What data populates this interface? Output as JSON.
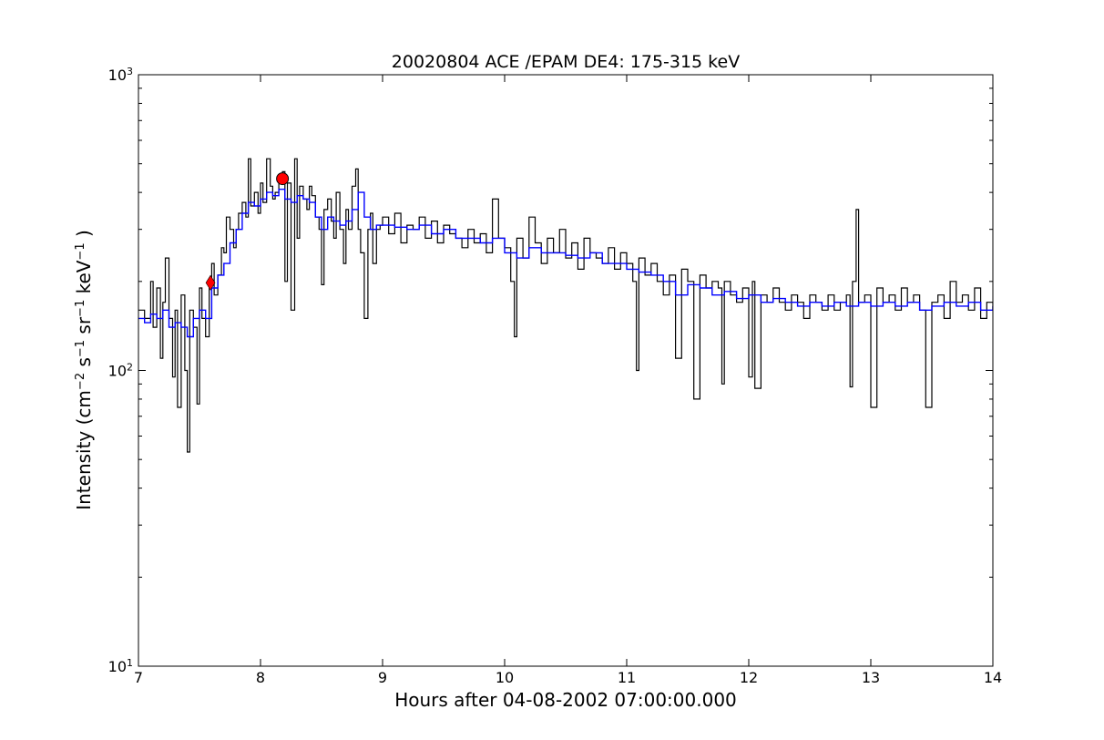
{
  "chart_data": {
    "type": "line",
    "title": "20020804 ACE /EPAM DE4: 175-315 keV",
    "xlabel": "Hours after 04-08-2002 07:00:00.000",
    "ylabel": {
      "prefix": "Intensity (cm",
      "exp1": "−2",
      "s": " s",
      "exp2": "−1",
      "sr": " sr",
      "exp3": "−1",
      "kev": " keV",
      "exp4": "−1",
      "suffix": " )"
    },
    "xlim": [
      7,
      14
    ],
    "ylim": [
      10,
      1000
    ],
    "yscale": "log",
    "grid": false,
    "x_ticks": [
      "7",
      "8",
      "9",
      "10",
      "11",
      "12",
      "13",
      "14"
    ],
    "y_ticks": [
      {
        "base": "10",
        "exp": "1"
      },
      {
        "base": "10",
        "exp": "2"
      },
      {
        "base": "10",
        "exp": "3"
      }
    ],
    "series": [
      {
        "color": "#000000",
        "style": "steps-raw",
        "points": [
          [
            7.0,
            160
          ],
          [
            7.05,
            150
          ],
          [
            7.1,
            200
          ],
          [
            7.12,
            140
          ],
          [
            7.15,
            190
          ],
          [
            7.18,
            110
          ],
          [
            7.2,
            170
          ],
          [
            7.22,
            240
          ],
          [
            7.25,
            150
          ],
          [
            7.28,
            95
          ],
          [
            7.3,
            160
          ],
          [
            7.32,
            75
          ],
          [
            7.35,
            180
          ],
          [
            7.38,
            100
          ],
          [
            7.4,
            53
          ],
          [
            7.42,
            160
          ],
          [
            7.45,
            140
          ],
          [
            7.48,
            77
          ],
          [
            7.5,
            190
          ],
          [
            7.52,
            150
          ],
          [
            7.55,
            130
          ],
          [
            7.58,
            200
          ],
          [
            7.6,
            230
          ],
          [
            7.62,
            180
          ],
          [
            7.65,
            210
          ],
          [
            7.68,
            260
          ],
          [
            7.7,
            250
          ],
          [
            7.72,
            330
          ],
          [
            7.75,
            300
          ],
          [
            7.78,
            260
          ],
          [
            7.8,
            300
          ],
          [
            7.82,
            340
          ],
          [
            7.85,
            370
          ],
          [
            7.88,
            330
          ],
          [
            7.9,
            520
          ],
          [
            7.92,
            360
          ],
          [
            7.95,
            400
          ],
          [
            7.98,
            340
          ],
          [
            8.0,
            430
          ],
          [
            8.02,
            370
          ],
          [
            8.05,
            520
          ],
          [
            8.08,
            420
          ],
          [
            8.1,
            380
          ],
          [
            8.12,
            400
          ],
          [
            8.15,
            440
          ],
          [
            8.18,
            470
          ],
          [
            8.2,
            200
          ],
          [
            8.22,
            430
          ],
          [
            8.25,
            160
          ],
          [
            8.28,
            520
          ],
          [
            8.3,
            280
          ],
          [
            8.32,
            420
          ],
          [
            8.35,
            380
          ],
          [
            8.38,
            350
          ],
          [
            8.4,
            420
          ],
          [
            8.42,
            390
          ],
          [
            8.45,
            330
          ],
          [
            8.48,
            300
          ],
          [
            8.5,
            195
          ],
          [
            8.52,
            350
          ],
          [
            8.55,
            380
          ],
          [
            8.58,
            320
          ],
          [
            8.6,
            280
          ],
          [
            8.62,
            400
          ],
          [
            8.65,
            300
          ],
          [
            8.68,
            230
          ],
          [
            8.7,
            350
          ],
          [
            8.72,
            300
          ],
          [
            8.75,
            420
          ],
          [
            8.78,
            480
          ],
          [
            8.8,
            300
          ],
          [
            8.82,
            250
          ],
          [
            8.85,
            150
          ],
          [
            8.88,
            300
          ],
          [
            8.9,
            340
          ],
          [
            8.92,
            230
          ],
          [
            8.95,
            300
          ],
          [
            8.98,
            310
          ],
          [
            9.0,
            330
          ],
          [
            9.05,
            290
          ],
          [
            9.1,
            340
          ],
          [
            9.15,
            270
          ],
          [
            9.2,
            310
          ],
          [
            9.25,
            300
          ],
          [
            9.3,
            330
          ],
          [
            9.35,
            280
          ],
          [
            9.4,
            320
          ],
          [
            9.45,
            270
          ],
          [
            9.5,
            310
          ],
          [
            9.55,
            290
          ],
          [
            9.6,
            280
          ],
          [
            9.65,
            260
          ],
          [
            9.7,
            300
          ],
          [
            9.75,
            270
          ],
          [
            9.8,
            290
          ],
          [
            9.85,
            250
          ],
          [
            9.9,
            380
          ],
          [
            9.95,
            280
          ],
          [
            10.0,
            260
          ],
          [
            10.05,
            200
          ],
          [
            10.08,
            130
          ],
          [
            10.1,
            280
          ],
          [
            10.15,
            240
          ],
          [
            10.2,
            330
          ],
          [
            10.25,
            270
          ],
          [
            10.3,
            230
          ],
          [
            10.35,
            280
          ],
          [
            10.4,
            250
          ],
          [
            10.45,
            300
          ],
          [
            10.5,
            240
          ],
          [
            10.55,
            270
          ],
          [
            10.6,
            220
          ],
          [
            10.65,
            280
          ],
          [
            10.7,
            250
          ],
          [
            10.75,
            240
          ],
          [
            10.8,
            230
          ],
          [
            10.85,
            260
          ],
          [
            10.9,
            220
          ],
          [
            10.95,
            250
          ],
          [
            11.0,
            230
          ],
          [
            11.05,
            200
          ],
          [
            11.08,
            100
          ],
          [
            11.1,
            240
          ],
          [
            11.15,
            210
          ],
          [
            11.2,
            230
          ],
          [
            11.25,
            200
          ],
          [
            11.3,
            180
          ],
          [
            11.35,
            210
          ],
          [
            11.4,
            110
          ],
          [
            11.45,
            220
          ],
          [
            11.5,
            200
          ],
          [
            11.55,
            80
          ],
          [
            11.6,
            210
          ],
          [
            11.65,
            190
          ],
          [
            11.7,
            200
          ],
          [
            11.75,
            190
          ],
          [
            11.78,
            90
          ],
          [
            11.8,
            200
          ],
          [
            11.85,
            180
          ],
          [
            11.9,
            170
          ],
          [
            11.95,
            190
          ],
          [
            12.0,
            95
          ],
          [
            12.03,
            200
          ],
          [
            12.05,
            87
          ],
          [
            12.1,
            180
          ],
          [
            12.15,
            170
          ],
          [
            12.2,
            190
          ],
          [
            12.25,
            170
          ],
          [
            12.3,
            160
          ],
          [
            12.35,
            180
          ],
          [
            12.4,
            170
          ],
          [
            12.45,
            150
          ],
          [
            12.5,
            180
          ],
          [
            12.55,
            170
          ],
          [
            12.6,
            160
          ],
          [
            12.65,
            180
          ],
          [
            12.7,
            160
          ],
          [
            12.75,
            170
          ],
          [
            12.8,
            180
          ],
          [
            12.83,
            88
          ],
          [
            12.85,
            200
          ],
          [
            12.88,
            350
          ],
          [
            12.9,
            170
          ],
          [
            12.95,
            180
          ],
          [
            13.0,
            75
          ],
          [
            13.05,
            190
          ],
          [
            13.1,
            170
          ],
          [
            13.15,
            180
          ],
          [
            13.2,
            160
          ],
          [
            13.25,
            190
          ],
          [
            13.3,
            170
          ],
          [
            13.35,
            180
          ],
          [
            13.4,
            160
          ],
          [
            13.45,
            75
          ],
          [
            13.5,
            170
          ],
          [
            13.55,
            180
          ],
          [
            13.6,
            150
          ],
          [
            13.65,
            200
          ],
          [
            13.7,
            170
          ],
          [
            13.75,
            180
          ],
          [
            13.8,
            160
          ],
          [
            13.85,
            190
          ],
          [
            13.9,
            150
          ],
          [
            13.95,
            170
          ],
          [
            14.0,
            160
          ]
        ]
      },
      {
        "color": "#0000ff",
        "style": "steps-smoothed",
        "points": [
          [
            7.0,
            150
          ],
          [
            7.05,
            145
          ],
          [
            7.1,
            155
          ],
          [
            7.15,
            150
          ],
          [
            7.2,
            160
          ],
          [
            7.25,
            140
          ],
          [
            7.3,
            145
          ],
          [
            7.35,
            140
          ],
          [
            7.4,
            130
          ],
          [
            7.45,
            150
          ],
          [
            7.5,
            160
          ],
          [
            7.55,
            150
          ],
          [
            7.6,
            190
          ],
          [
            7.65,
            210
          ],
          [
            7.7,
            230
          ],
          [
            7.75,
            270
          ],
          [
            7.8,
            300
          ],
          [
            7.85,
            340
          ],
          [
            7.9,
            370
          ],
          [
            7.95,
            360
          ],
          [
            8.0,
            380
          ],
          [
            8.05,
            400
          ],
          [
            8.1,
            390
          ],
          [
            8.15,
            410
          ],
          [
            8.2,
            380
          ],
          [
            8.25,
            370
          ],
          [
            8.3,
            390
          ],
          [
            8.35,
            380
          ],
          [
            8.4,
            370
          ],
          [
            8.45,
            330
          ],
          [
            8.5,
            300
          ],
          [
            8.55,
            330
          ],
          [
            8.6,
            320
          ],
          [
            8.65,
            310
          ],
          [
            8.7,
            320
          ],
          [
            8.75,
            350
          ],
          [
            8.8,
            400
          ],
          [
            8.85,
            330
          ],
          [
            8.9,
            300
          ],
          [
            8.95,
            310
          ],
          [
            9.0,
            310
          ],
          [
            9.1,
            305
          ],
          [
            9.2,
            300
          ],
          [
            9.3,
            310
          ],
          [
            9.4,
            290
          ],
          [
            9.5,
            300
          ],
          [
            9.6,
            280
          ],
          [
            9.7,
            280
          ],
          [
            9.8,
            270
          ],
          [
            9.9,
            280
          ],
          [
            10.0,
            250
          ],
          [
            10.1,
            240
          ],
          [
            10.2,
            260
          ],
          [
            10.3,
            250
          ],
          [
            10.4,
            250
          ],
          [
            10.5,
            245
          ],
          [
            10.6,
            240
          ],
          [
            10.7,
            250
          ],
          [
            10.8,
            230
          ],
          [
            10.9,
            230
          ],
          [
            11.0,
            220
          ],
          [
            11.1,
            215
          ],
          [
            11.2,
            210
          ],
          [
            11.3,
            200
          ],
          [
            11.4,
            180
          ],
          [
            11.5,
            195
          ],
          [
            11.6,
            190
          ],
          [
            11.7,
            180
          ],
          [
            11.8,
            185
          ],
          [
            11.9,
            175
          ],
          [
            12.0,
            180
          ],
          [
            12.1,
            170
          ],
          [
            12.2,
            175
          ],
          [
            12.3,
            170
          ],
          [
            12.4,
            165
          ],
          [
            12.5,
            170
          ],
          [
            12.6,
            165
          ],
          [
            12.7,
            170
          ],
          [
            12.8,
            165
          ],
          [
            12.9,
            170
          ],
          [
            13.0,
            165
          ],
          [
            13.1,
            170
          ],
          [
            13.2,
            165
          ],
          [
            13.3,
            170
          ],
          [
            13.4,
            160
          ],
          [
            13.5,
            165
          ],
          [
            13.6,
            170
          ],
          [
            13.7,
            165
          ],
          [
            13.8,
            170
          ],
          [
            13.9,
            160
          ],
          [
            14.0,
            165
          ]
        ]
      }
    ],
    "markers": [
      {
        "x": 7.59,
        "y": 198,
        "shape": "diamond",
        "color": "#ff0000"
      },
      {
        "x": 8.18,
        "y": 445,
        "shape": "circle",
        "color": "#ff0000"
      }
    ]
  }
}
